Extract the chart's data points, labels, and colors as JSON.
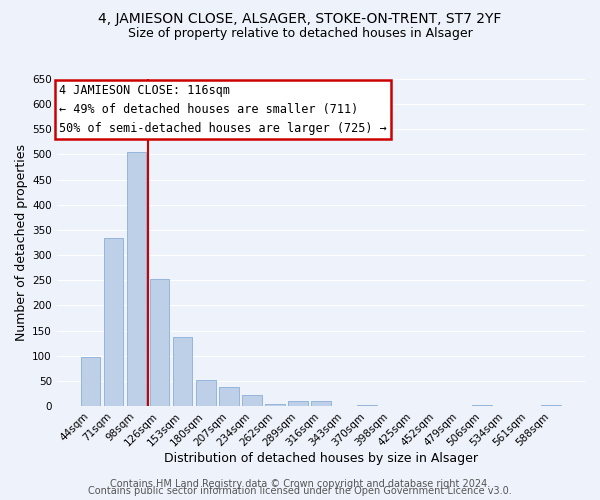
{
  "title": "4, JAMIESON CLOSE, ALSAGER, STOKE-ON-TRENT, ST7 2YF",
  "subtitle": "Size of property relative to detached houses in Alsager",
  "xlabel": "Distribution of detached houses by size in Alsager",
  "ylabel": "Number of detached properties",
  "bar_labels": [
    "44sqm",
    "71sqm",
    "98sqm",
    "126sqm",
    "153sqm",
    "180sqm",
    "207sqm",
    "234sqm",
    "262sqm",
    "289sqm",
    "316sqm",
    "343sqm",
    "370sqm",
    "398sqm",
    "425sqm",
    "452sqm",
    "479sqm",
    "506sqm",
    "534sqm",
    "561sqm",
    "588sqm"
  ],
  "bar_values": [
    97,
    335,
    505,
    253,
    137,
    52,
    38,
    22,
    5,
    10,
    10,
    0,
    2,
    0,
    0,
    0,
    0,
    2,
    0,
    0,
    2
  ],
  "bar_color": "#bdd0e8",
  "bar_edge_color": "#8ab0d8",
  "marker_label": "4 JAMIESON CLOSE: 116sqm",
  "annotation_line1": "← 49% of detached houses are smaller (711)",
  "annotation_line2": "50% of semi-detached houses are larger (725) →",
  "box_color": "#cc0000",
  "ylim": [
    0,
    650
  ],
  "yticks": [
    0,
    50,
    100,
    150,
    200,
    250,
    300,
    350,
    400,
    450,
    500,
    550,
    600,
    650
  ],
  "vline_x_index": 2.5,
  "footer1": "Contains HM Land Registry data © Crown copyright and database right 2024.",
  "footer2": "Contains public sector information licensed under the Open Government Licence v3.0.",
  "bg_color": "#eef2fa",
  "grid_color": "#ffffff",
  "title_fontsize": 10,
  "subtitle_fontsize": 9,
  "axis_fontsize": 9,
  "tick_fontsize": 7.5,
  "footer_fontsize": 7
}
